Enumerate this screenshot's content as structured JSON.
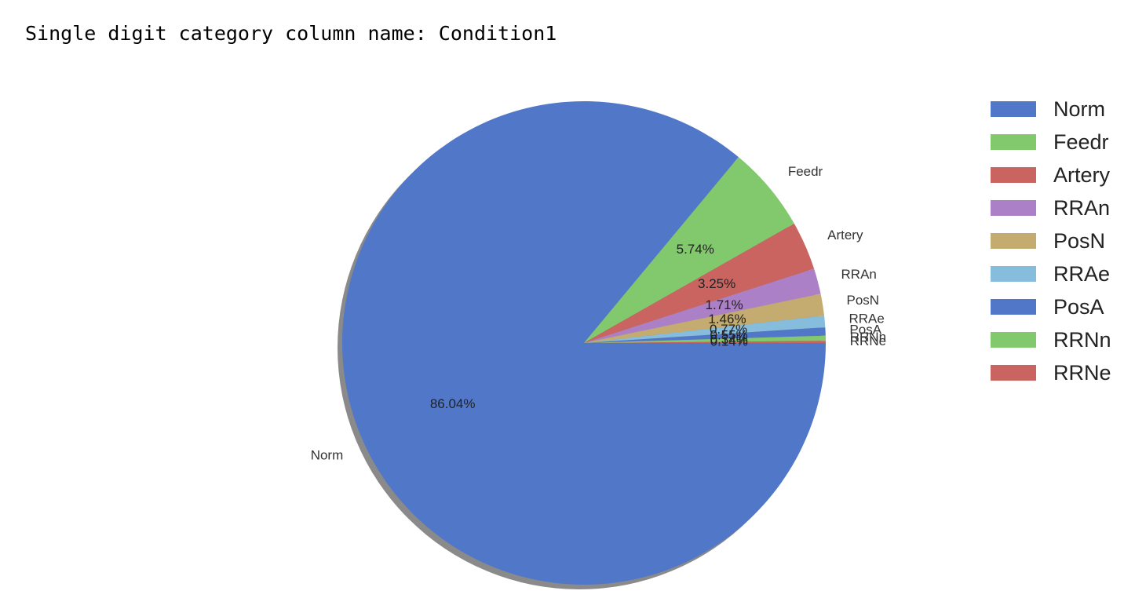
{
  "header": {
    "text": "Single digit category column name: Condition1"
  },
  "chart_data": {
    "type": "pie",
    "title": "",
    "shadow": true,
    "start_angle": 0,
    "direction": "clockwise",
    "legend_position": "right",
    "slices": [
      {
        "label": "Norm",
        "value": 86.04,
        "pct_label": "86.04%",
        "color": "#5177c8"
      },
      {
        "label": "Feedr",
        "value": 5.74,
        "pct_label": "5.74%",
        "color": "#82c96e"
      },
      {
        "label": "Artery",
        "value": 3.25,
        "pct_label": "3.25%",
        "color": "#c96460"
      },
      {
        "label": "RRAn",
        "value": 1.71,
        "pct_label": "1.71%",
        "color": "#ac80c6"
      },
      {
        "label": "PosN",
        "value": 1.46,
        "pct_label": "1.46%",
        "color": "#c4ac70"
      },
      {
        "label": "RRAe",
        "value": 0.77,
        "pct_label": "0.77%",
        "color": "#86bcdc"
      },
      {
        "label": "PosA",
        "value": 0.55,
        "pct_label": "0.55%",
        "color": "#5177c8"
      },
      {
        "label": "RRNn",
        "value": 0.34,
        "pct_label": "0.34%",
        "color": "#82c96e"
      },
      {
        "label": "RRNe",
        "value": 0.14,
        "pct_label": "0.14%",
        "color": "#c96460"
      }
    ]
  }
}
